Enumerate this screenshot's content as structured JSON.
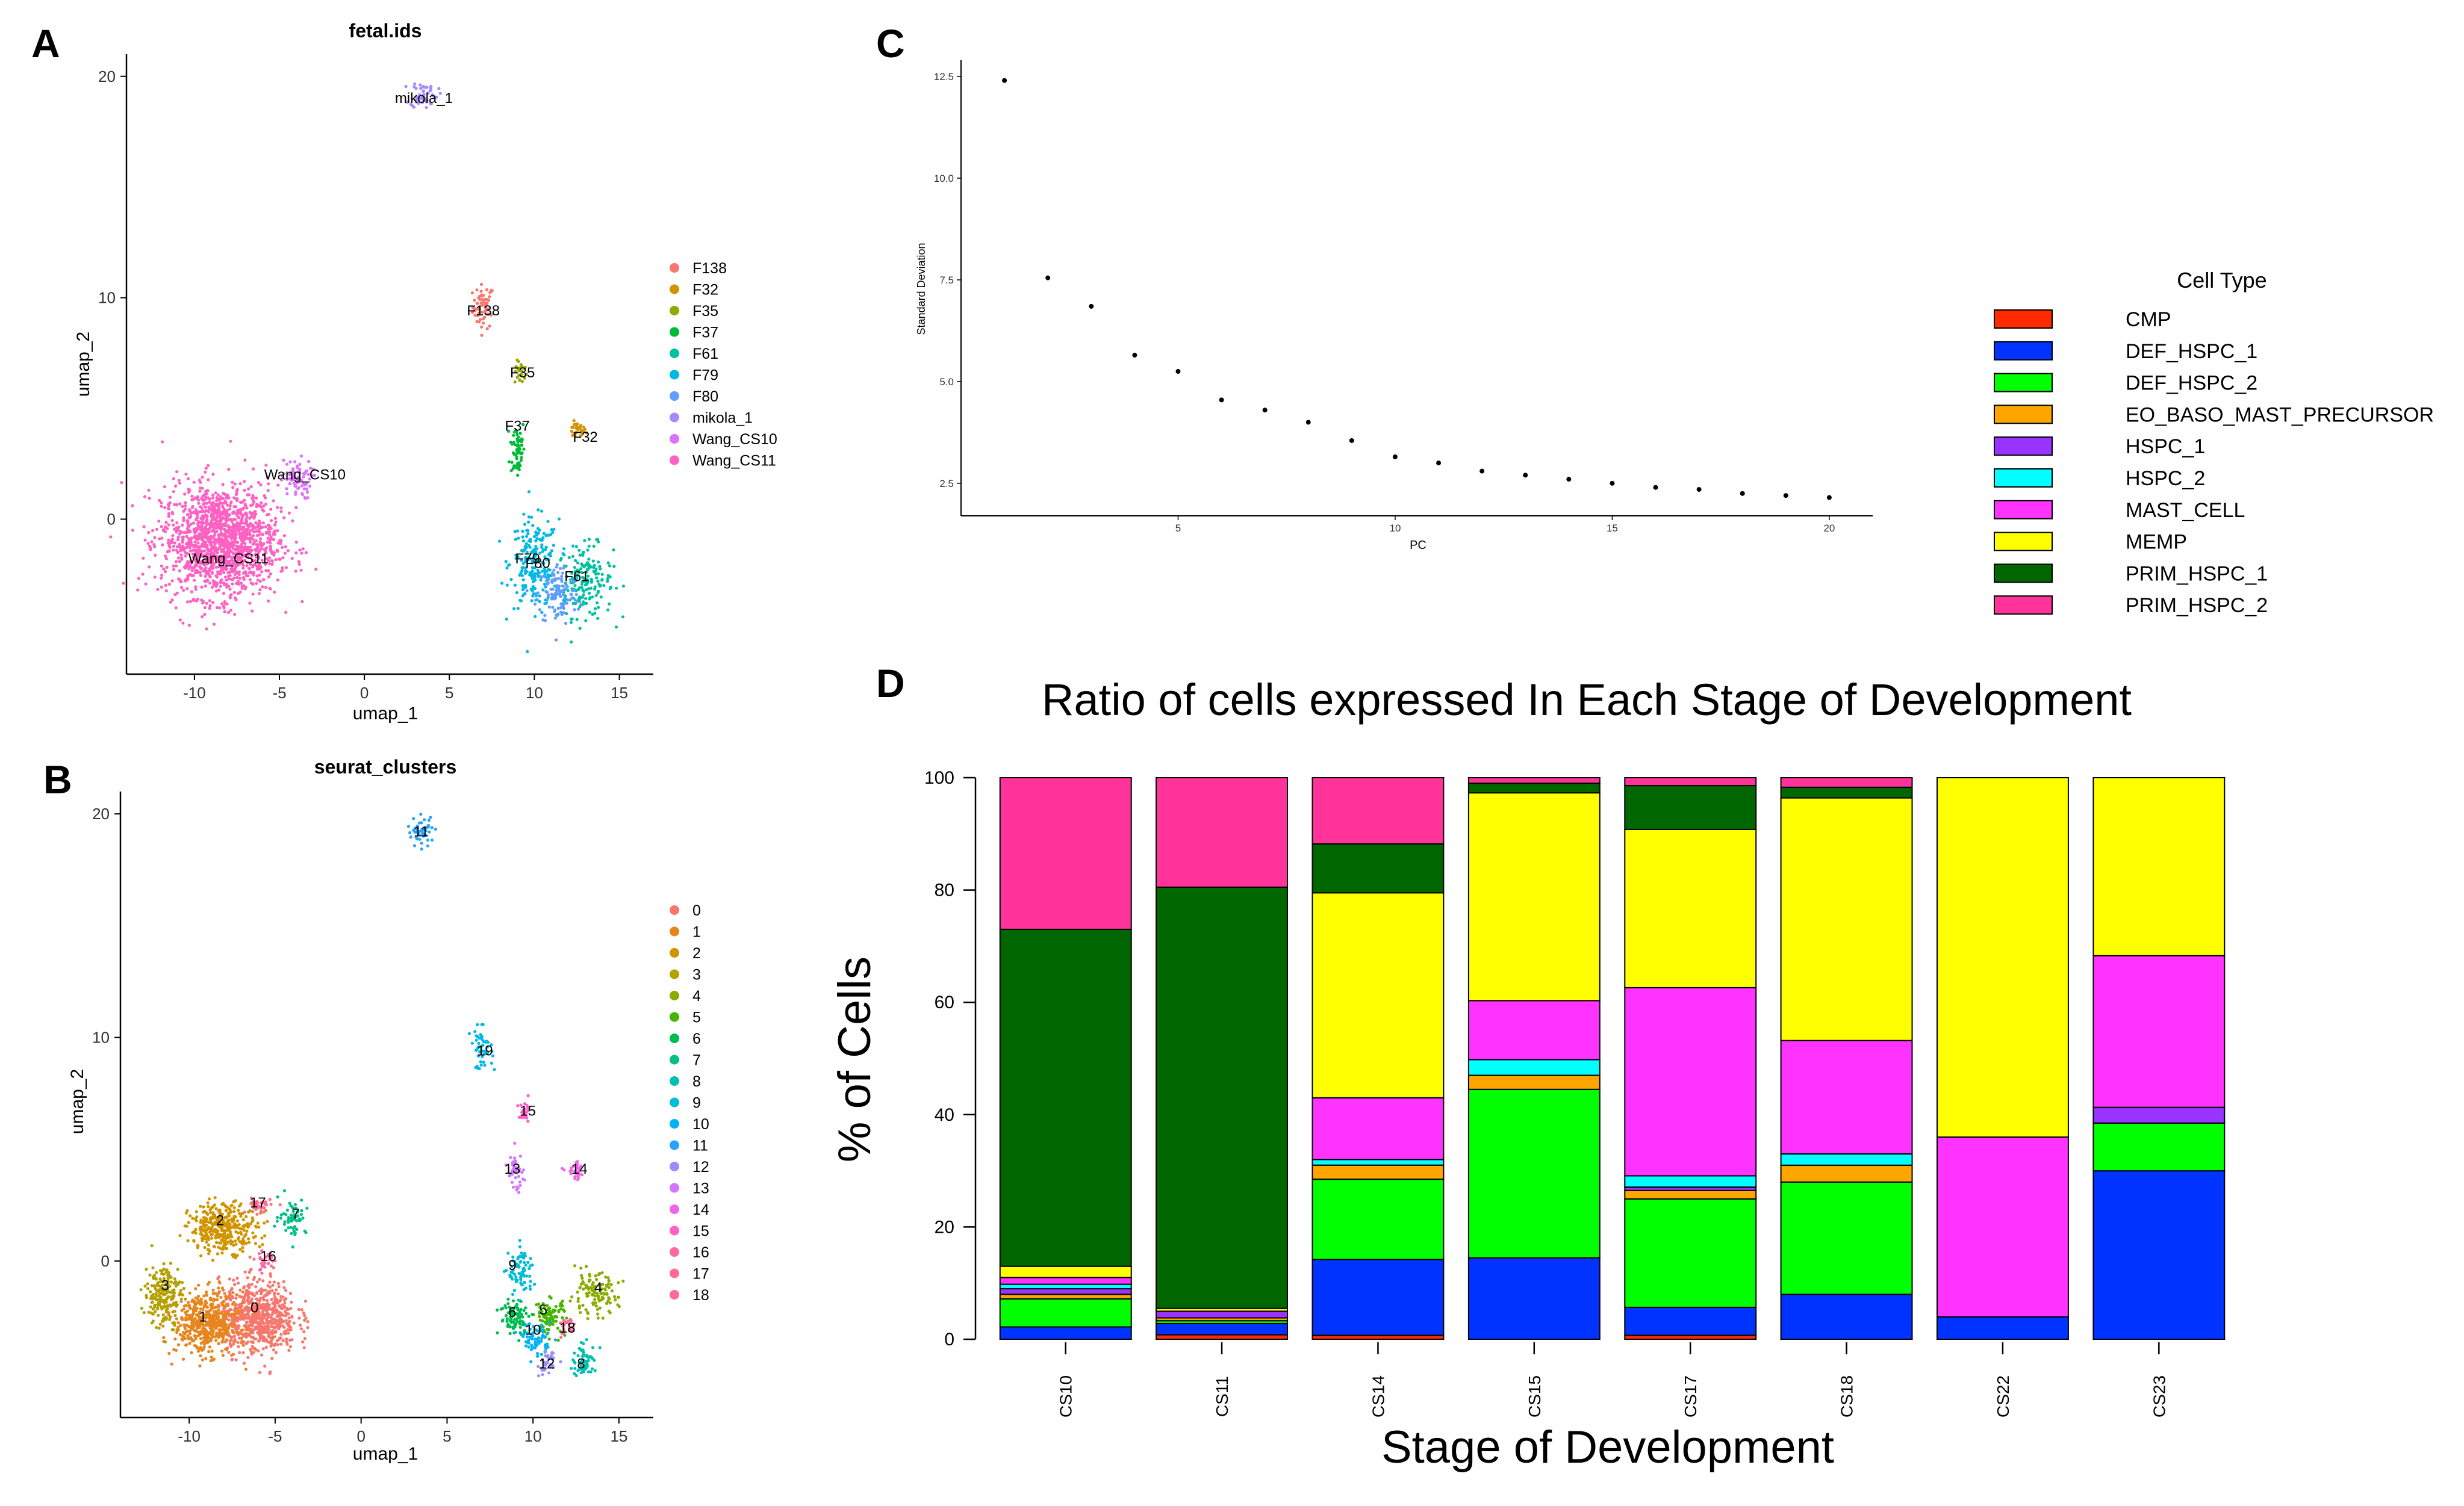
{
  "panels": {
    "A": "A",
    "B": "B",
    "C": "C",
    "D": "D"
  },
  "chart_data": [
    {
      "id": "A",
      "type": "scatter",
      "title": "fetal.ids",
      "xlabel": "umap_1",
      "ylabel": "umap_2",
      "xlim": [
        -14,
        17
      ],
      "ylim": [
        -7,
        21
      ],
      "xticks": [
        -10,
        -5,
        0,
        5,
        10,
        15
      ],
      "yticks": [
        0,
        10,
        20
      ],
      "legend_position": "right",
      "series": [
        {
          "name": "F138",
          "color": "#F8766D"
        },
        {
          "name": "F32",
          "color": "#D39200"
        },
        {
          "name": "F35",
          "color": "#93AA00"
        },
        {
          "name": "F37",
          "color": "#00BA38"
        },
        {
          "name": "F61",
          "color": "#00C19F"
        },
        {
          "name": "F79",
          "color": "#00B9E3"
        },
        {
          "name": "F80",
          "color": "#619CFF"
        },
        {
          "name": "mikola_1",
          "color": "#A58AFF"
        },
        {
          "name": "Wang_CS10",
          "color": "#DB72FB"
        },
        {
          "name": "Wang_CS11",
          "color": "#FF61C3"
        }
      ],
      "clusters": [
        {
          "name": "F138",
          "shape": "blob",
          "cx": 7.0,
          "cy": 9.6,
          "rx": 0.7,
          "ry": 1.1,
          "n": 60
        },
        {
          "name": "F32",
          "shape": "blob",
          "cx": 12.5,
          "cy": 4.0,
          "rx": 0.6,
          "ry": 0.4,
          "n": 30
        },
        {
          "name": "F35",
          "shape": "blob",
          "cx": 9.2,
          "cy": 6.6,
          "rx": 0.4,
          "ry": 0.6,
          "n": 25
        },
        {
          "name": "F37",
          "shape": "blob",
          "cx": 9.0,
          "cy": 3.2,
          "rx": 0.5,
          "ry": 1.6,
          "n": 60
        },
        {
          "name": "F61",
          "shape": "blob",
          "cx": 13.0,
          "cy": -2.8,
          "rx": 1.8,
          "ry": 1.8,
          "n": 180
        },
        {
          "name": "F79",
          "shape": "blob",
          "cx": 10.0,
          "cy": -2.0,
          "rx": 1.6,
          "ry": 2.2,
          "n": 220
        },
        {
          "name": "F80",
          "shape": "blob",
          "cx": 11.4,
          "cy": -3.4,
          "rx": 1.4,
          "ry": 1.6,
          "n": 120
        },
        {
          "name": "mikola_1",
          "shape": "blob",
          "cx": 3.5,
          "cy": 19.2,
          "rx": 0.9,
          "ry": 0.7,
          "n": 50
        },
        {
          "name": "Wang_CS10",
          "shape": "blob",
          "cx": -4.0,
          "cy": 1.8,
          "rx": 1.0,
          "ry": 1.0,
          "n": 70
        },
        {
          "name": "Wang_CS11",
          "shape": "blob",
          "cx": -8.5,
          "cy": -1.0,
          "rx": 3.8,
          "ry": 2.8,
          "n": 1500
        }
      ],
      "labels": [
        {
          "text": "mikola_1",
          "x": 3.5,
          "y": 18.8
        },
        {
          "text": "F138",
          "x": 7.0,
          "y": 9.2
        },
        {
          "text": "F35",
          "x": 9.3,
          "y": 6.4
        },
        {
          "text": "F37",
          "x": 9.0,
          "y": 4.0
        },
        {
          "text": "F32",
          "x": 13.0,
          "y": 3.5
        },
        {
          "text": "Wang_CS10",
          "x": -3.5,
          "y": 1.8
        },
        {
          "text": "Wang_CS11",
          "x": -8.0,
          "y": -2.0
        },
        {
          "text": "F79",
          "x": 9.6,
          "y": -2.0
        },
        {
          "text": "F80",
          "x": 10.2,
          "y": -2.2
        },
        {
          "text": "F61",
          "x": 12.5,
          "y": -2.8
        }
      ]
    },
    {
      "id": "B",
      "type": "scatter",
      "title": "seurat_clusters",
      "xlabel": "umap_1",
      "ylabel": "umap_2",
      "xlim": [
        -14,
        17
      ],
      "ylim": [
        -7,
        21
      ],
      "xticks": [
        -10,
        -5,
        0,
        5,
        10,
        15
      ],
      "yticks": [
        0,
        10,
        20
      ],
      "legend_position": "right",
      "series": [
        {
          "name": "0",
          "color": "#F8766D"
        },
        {
          "name": "1",
          "color": "#E7851E"
        },
        {
          "name": "2",
          "color": "#D09400"
        },
        {
          "name": "3",
          "color": "#B2A100"
        },
        {
          "name": "4",
          "color": "#89AC00"
        },
        {
          "name": "5",
          "color": "#45B500"
        },
        {
          "name": "6",
          "color": "#00BC51"
        },
        {
          "name": "7",
          "color": "#00C087"
        },
        {
          "name": "8",
          "color": "#00C0B2"
        },
        {
          "name": "9",
          "color": "#00BCD6"
        },
        {
          "name": "10",
          "color": "#00B3F2"
        },
        {
          "name": "11",
          "color": "#29A3FF"
        },
        {
          "name": "12",
          "color": "#9C8DFF"
        },
        {
          "name": "13",
          "color": "#D277FF"
        },
        {
          "name": "14",
          "color": "#F166E8"
        },
        {
          "name": "15",
          "color": "#FF61C7"
        },
        {
          "name": "16",
          "color": "#FF689E"
        },
        {
          "name": "17",
          "color": "#FF6C91"
        },
        {
          "name": "18",
          "color": "#FF6A98"
        }
      ],
      "clusters": [
        {
          "name": "0",
          "shape": "blob",
          "cx": -6.0,
          "cy": -2.5,
          "rx": 2.5,
          "ry": 1.8,
          "n": 700
        },
        {
          "name": "1",
          "shape": "blob",
          "cx": -9.0,
          "cy": -2.8,
          "rx": 2.0,
          "ry": 1.5,
          "n": 500
        },
        {
          "name": "2",
          "shape": "blob",
          "cx": -8.0,
          "cy": 1.5,
          "rx": 2.2,
          "ry": 1.2,
          "n": 350
        },
        {
          "name": "3",
          "shape": "blob",
          "cx": -11.5,
          "cy": -1.5,
          "rx": 1.2,
          "ry": 1.6,
          "n": 200
        },
        {
          "name": "4",
          "shape": "blob",
          "cx": 13.5,
          "cy": -1.5,
          "rx": 1.6,
          "ry": 1.0,
          "n": 120
        },
        {
          "name": "5",
          "shape": "blob",
          "cx": 11.0,
          "cy": -2.5,
          "rx": 1.0,
          "ry": 0.9,
          "n": 90
        },
        {
          "name": "6",
          "shape": "blob",
          "cx": 9.0,
          "cy": -2.5,
          "rx": 1.0,
          "ry": 0.9,
          "n": 90
        },
        {
          "name": "7",
          "shape": "blob",
          "cx": -4.0,
          "cy": 2.0,
          "rx": 0.9,
          "ry": 0.9,
          "n": 60
        },
        {
          "name": "8",
          "shape": "blob",
          "cx": 13.0,
          "cy": -4.5,
          "rx": 0.8,
          "ry": 0.8,
          "n": 70
        },
        {
          "name": "9",
          "shape": "blob",
          "cx": 9.3,
          "cy": -0.5,
          "rx": 0.8,
          "ry": 1.2,
          "n": 80
        },
        {
          "name": "10",
          "shape": "blob",
          "cx": 10.2,
          "cy": -3.5,
          "rx": 0.9,
          "ry": 0.8,
          "n": 70
        },
        {
          "name": "11",
          "shape": "blob",
          "cx": 3.5,
          "cy": 19.2,
          "rx": 0.9,
          "ry": 0.7,
          "n": 50
        },
        {
          "name": "12",
          "shape": "blob",
          "cx": 10.8,
          "cy": -4.6,
          "rx": 0.5,
          "ry": 0.6,
          "n": 40
        },
        {
          "name": "13",
          "shape": "blob",
          "cx": 9.0,
          "cy": 4.0,
          "rx": 0.5,
          "ry": 1.0,
          "n": 40
        },
        {
          "name": "14",
          "shape": "blob",
          "cx": 12.5,
          "cy": 4.0,
          "rx": 0.6,
          "ry": 0.4,
          "n": 30
        },
        {
          "name": "15",
          "shape": "blob",
          "cx": 9.5,
          "cy": 6.5,
          "rx": 0.4,
          "ry": 0.6,
          "n": 25
        },
        {
          "name": "16",
          "shape": "blob",
          "cx": -5.5,
          "cy": 0.0,
          "rx": 0.7,
          "ry": 0.6,
          "n": 30
        },
        {
          "name": "17",
          "shape": "blob",
          "cx": -6.0,
          "cy": 2.5,
          "rx": 0.8,
          "ry": 0.4,
          "n": 40
        },
        {
          "name": "18",
          "shape": "blob",
          "cx": 12.0,
          "cy": -3.0,
          "rx": 0.5,
          "ry": 0.5,
          "n": 25
        }
      ],
      "extra_clusters": [
        {
          "name": "19",
          "cx": 7.0,
          "cy": 9.5,
          "rx": 0.7,
          "ry": 1.0,
          "n": 50,
          "color": "#00B8E5"
        }
      ],
      "labels": [
        {
          "text": "11",
          "x": 3.5,
          "y": 19.0
        },
        {
          "text": "19",
          "x": 7.2,
          "y": 9.2
        },
        {
          "text": "15",
          "x": 9.7,
          "y": 6.5
        },
        {
          "text": "13",
          "x": 8.8,
          "y": 3.9
        },
        {
          "text": "14",
          "x": 12.7,
          "y": 3.9
        },
        {
          "text": "17",
          "x": -6.0,
          "y": 2.4
        },
        {
          "text": "2",
          "x": -8.2,
          "y": 1.6
        },
        {
          "text": "7",
          "x": -3.8,
          "y": 1.9
        },
        {
          "text": "16",
          "x": -5.4,
          "y": 0.0
        },
        {
          "text": "3",
          "x": -11.4,
          "y": -1.3
        },
        {
          "text": "1",
          "x": -9.2,
          "y": -2.7
        },
        {
          "text": "0",
          "x": -6.2,
          "y": -2.3
        },
        {
          "text": "9",
          "x": 8.8,
          "y": -0.4
        },
        {
          "text": "6",
          "x": 8.8,
          "y": -2.5
        },
        {
          "text": "5",
          "x": 10.6,
          "y": -2.4
        },
        {
          "text": "4",
          "x": 13.8,
          "y": -1.4
        },
        {
          "text": "18",
          "x": 12.0,
          "y": -3.2
        },
        {
          "text": "12",
          "x": 10.8,
          "y": -4.8
        },
        {
          "text": "8",
          "x": 12.8,
          "y": -4.8
        },
        {
          "text": "10",
          "x": 10.0,
          "y": -3.3
        }
      ]
    },
    {
      "id": "C",
      "type": "scatter",
      "title": "",
      "xlabel": "PC",
      "ylabel": "Standard Deviation",
      "xlim": [
        0,
        21
      ],
      "ylim": [
        1.7,
        12.9
      ],
      "xticks": [
        5,
        10,
        15,
        20
      ],
      "yticks": [
        2.5,
        5.0,
        7.5,
        10.0,
        12.5
      ],
      "x": [
        1,
        2,
        3,
        4,
        5,
        6,
        7,
        8,
        9,
        10,
        11,
        12,
        13,
        14,
        15,
        16,
        17,
        18,
        19,
        20
      ],
      "y": [
        12.4,
        7.55,
        6.85,
        5.65,
        5.25,
        4.55,
        4.3,
        4.0,
        3.55,
        3.15,
        3.0,
        2.8,
        2.7,
        2.6,
        2.5,
        2.4,
        2.35,
        2.25,
        2.2,
        2.15
      ]
    },
    {
      "id": "D",
      "type": "bar",
      "stacked": true,
      "title": "Ratio of cells expressed In Each Stage of Development",
      "xlabel": "Stage of Development",
      "ylabel": "% of Cells",
      "ylim": [
        0,
        100
      ],
      "yticks": [
        0,
        20,
        40,
        60,
        80,
        100
      ],
      "legend_title": "Cell Type",
      "legend_position": "top-right",
      "categories": [
        "CS10",
        "CS11",
        "CS14",
        "CS15",
        "CS17",
        "CS18",
        "CS22",
        "CS23"
      ],
      "series": [
        {
          "name": "CMP",
          "color": "#FF2A00",
          "values": [
            0,
            0.8,
            0.7,
            0,
            0.7,
            0,
            0,
            0
          ]
        },
        {
          "name": "DEF_HSPC_1",
          "color": "#0033FF",
          "values": [
            2.2,
            2.0,
            13.5,
            14.5,
            5.0,
            8.0,
            4.0,
            30.0
          ]
        },
        {
          "name": "DEF_HSPC_2",
          "color": "#00FF00",
          "values": [
            5.0,
            0.5,
            14.3,
            30.0,
            19.3,
            20.0,
            0,
            8.5
          ]
        },
        {
          "name": "EO_BASO_MAST_PRECURSOR",
          "color": "#FFA500",
          "values": [
            0.8,
            0.5,
            2.5,
            2.5,
            1.5,
            3.0,
            0,
            0
          ]
        },
        {
          "name": "HSPC_1",
          "color": "#9933FF",
          "values": [
            1.0,
            1.2,
            0,
            0,
            0.6,
            0,
            0,
            2.8
          ]
        },
        {
          "name": "HSPC_2",
          "color": "#00FFFF",
          "values": [
            0.8,
            0,
            1.0,
            2.8,
            2.0,
            2.0,
            0,
            0
          ]
        },
        {
          "name": "MAST_CELL",
          "color": "#FF33FF",
          "values": [
            1.2,
            0,
            11.0,
            10.5,
            33.5,
            20.2,
            32.0,
            27.0
          ]
        },
        {
          "name": "MEMP",
          "color": "#FFFF00",
          "values": [
            2.0,
            0.5,
            36.5,
            37.0,
            28.2,
            43.2,
            64.0,
            31.7
          ]
        },
        {
          "name": "PRIM_HSPC_1",
          "color": "#006600",
          "values": [
            60.0,
            75.0,
            8.7,
            1.7,
            7.8,
            1.9,
            0,
            0
          ]
        },
        {
          "name": "PRIM_HSPC_2",
          "color": "#FF3399",
          "values": [
            27.0,
            19.5,
            11.8,
            1.0,
            1.4,
            1.7,
            0,
            0
          ]
        }
      ]
    }
  ]
}
